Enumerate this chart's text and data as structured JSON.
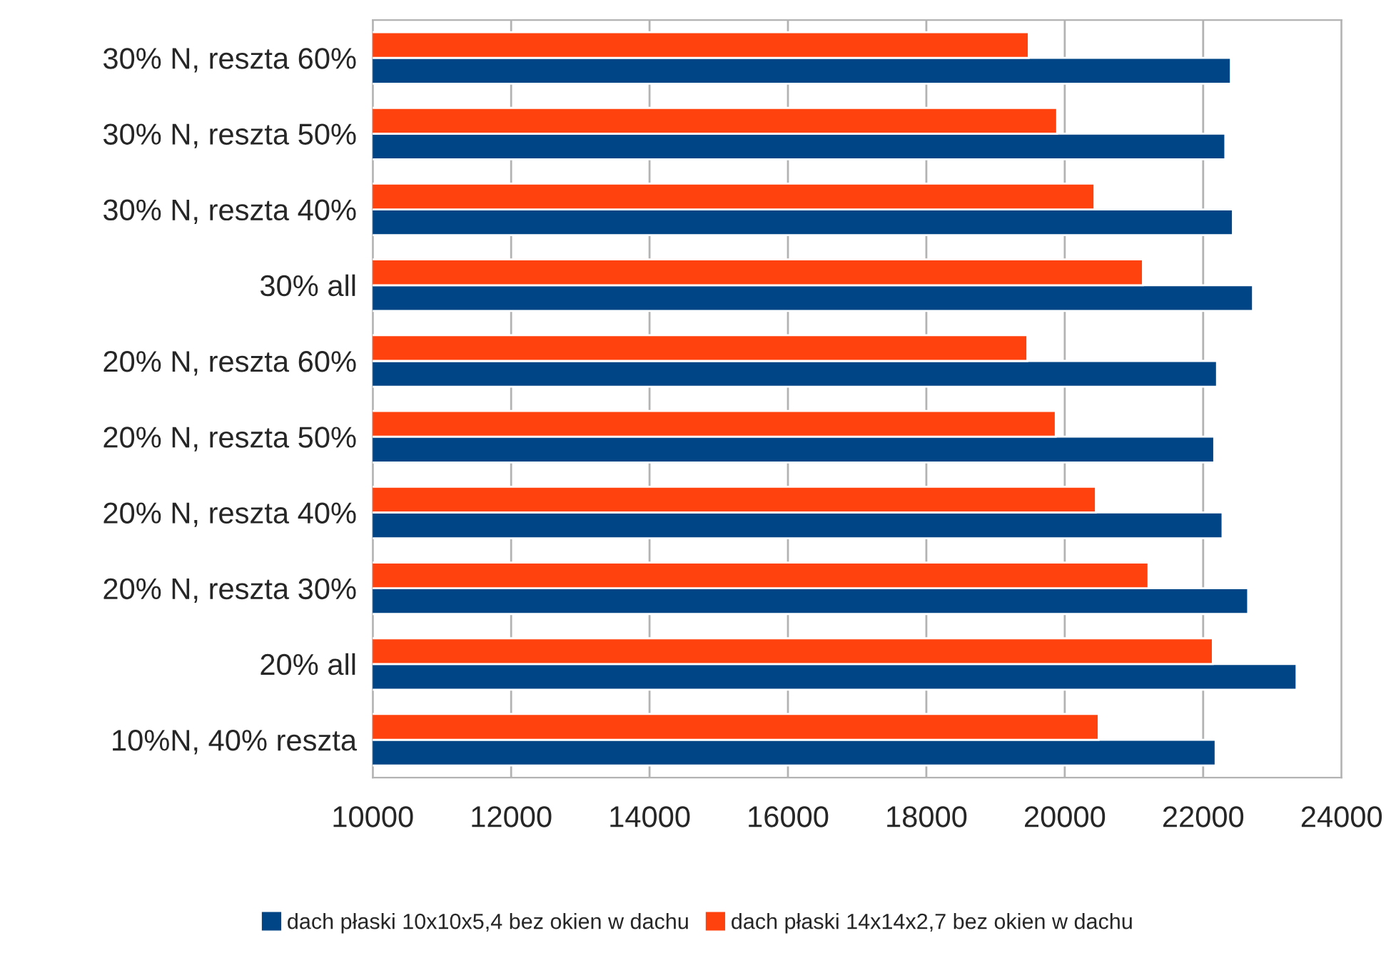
{
  "chart_data": {
    "type": "bar",
    "orientation": "horizontal",
    "categories": [
      "30% N, reszta 60%",
      "30% N, reszta 50%",
      "30% N, reszta 40%",
      "30% all",
      "20% N, reszta 60%",
      "20% N, reszta 50%",
      "20% N, reszta 40%",
      "20% N, reszta 30%",
      "20% all",
      "10%N, 40% reszta"
    ],
    "series": [
      {
        "name": "dach płaski 10x10x5,4 bez okien w dachu",
        "color": "#004586",
        "values": [
          22400,
          22320,
          22430,
          22720,
          22200,
          22160,
          22280,
          22650,
          23350,
          22180
        ]
      },
      {
        "name": "dach płaski 14x14x2,7 bez okien w dachu",
        "color": "#ff420e",
        "values": [
          19480,
          19890,
          20430,
          21130,
          19460,
          19870,
          20450,
          21210,
          22140,
          20490
        ]
      }
    ],
    "xlim": [
      10000,
      24000
    ],
    "xticks": [
      10000,
      12000,
      14000,
      16000,
      18000,
      20000,
      22000,
      24000
    ],
    "grid": "x",
    "legend": "bottom"
  }
}
